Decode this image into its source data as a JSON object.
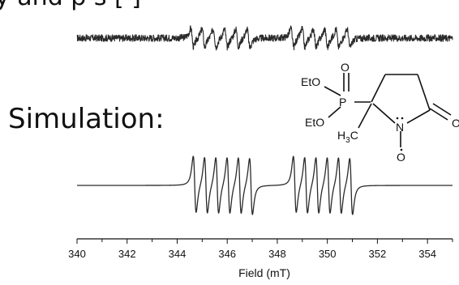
{
  "figure": {
    "top_partial_text": "y and p  s  [ ]",
    "simulation_label": "Simulation:"
  },
  "structure": {
    "ethoxy_top": "EtO",
    "ethoxy_bottom": "EtO",
    "phosphorus": "P",
    "oxygen_p": "O",
    "methyl": "H3C",
    "nitrogen": "N",
    "oxygen_nitroxide": "O",
    "oxygen_carbonyl": "O"
  },
  "chart_data": {
    "type": "line",
    "xlabel": "Field (mT)",
    "ylabel": "",
    "xlim": [
      340,
      355
    ],
    "xticks": [
      340,
      342,
      344,
      346,
      348,
      350,
      352,
      354
    ],
    "grid": false,
    "series": [
      {
        "role": "experimental",
        "baseline_offset": 1,
        "noise_level": 0.07,
        "line_groups": [
          {
            "center": 346.0,
            "lines": [
              344.6,
              345.05,
              345.5,
              345.95,
              346.4,
              346.85
            ]
          },
          {
            "center": 350.0,
            "lines": [
              348.6,
              349.05,
              349.5,
              349.95,
              350.4,
              350.85
            ]
          }
        ],
        "amplitude": 0.32
      },
      {
        "role": "simulation",
        "baseline_offset": 0,
        "noise_level": 0,
        "line_groups": [
          {
            "center": 346.0,
            "lines": [
              344.7,
              345.15,
              345.6,
              346.05,
              346.5,
              346.95
            ]
          },
          {
            "center": 350.0,
            "lines": [
              348.7,
              349.15,
              349.6,
              350.05,
              350.5,
              350.95
            ]
          }
        ],
        "amplitude": 0.6
      }
    ]
  }
}
